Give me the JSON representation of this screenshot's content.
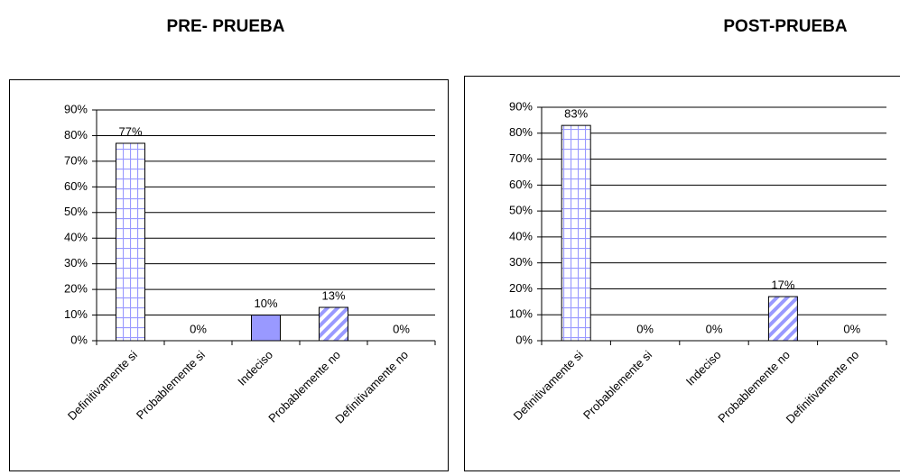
{
  "chart_data": [
    {
      "type": "bar",
      "title": "PRE- PRUEBA",
      "categories": [
        "Definitivamente si",
        "Probablemente si",
        "Indeciso",
        "Probablemente no",
        "Definitivamente no"
      ],
      "values": [
        77,
        0,
        10,
        13,
        0
      ],
      "value_labels": [
        "77%",
        "0%",
        "10%",
        "13%",
        "0%"
      ],
      "color": "#9999ff",
      "patterns": [
        "grid",
        "grid",
        "solid",
        "stripes",
        "stripes"
      ],
      "ylim": [
        0,
        90
      ],
      "yticks": [
        {
          "value": 0,
          "label": "0%"
        },
        {
          "value": 10,
          "label": "10%"
        },
        {
          "value": 20,
          "label": "20%"
        },
        {
          "value": 30,
          "label": "30%"
        },
        {
          "value": 40,
          "label": "40%"
        },
        {
          "value": 50,
          "label": "50%"
        },
        {
          "value": 60,
          "label": "60%"
        },
        {
          "value": 70,
          "label": "70%"
        },
        {
          "value": 80,
          "label": "80%"
        },
        {
          "value": 90,
          "label": "90%"
        }
      ],
      "grid": true
    },
    {
      "type": "bar",
      "title": "POST-PRUEBA",
      "categories": [
        "Definitivamente si",
        "Probablemente si",
        "Indeciso",
        "Probablemente no",
        "Definitivamente no"
      ],
      "values": [
        83,
        0,
        0,
        17,
        0
      ],
      "value_labels": [
        "83%",
        "0%",
        "0%",
        "17%",
        "0%"
      ],
      "color": "#9999ff",
      "patterns": [
        "grid",
        "grid",
        "solid",
        "stripes",
        "stripes"
      ],
      "ylim": [
        0,
        90
      ],
      "yticks": [
        {
          "value": 0,
          "label": "0%"
        },
        {
          "value": 10,
          "label": "10%"
        },
        {
          "value": 20,
          "label": "20%"
        },
        {
          "value": 30,
          "label": "30%"
        },
        {
          "value": 40,
          "label": "40%"
        },
        {
          "value": 50,
          "label": "50%"
        },
        {
          "value": 60,
          "label": "60%"
        },
        {
          "value": 70,
          "label": "70%"
        },
        {
          "value": 80,
          "label": "80%"
        },
        {
          "value": 90,
          "label": "90%"
        }
      ],
      "grid": true
    }
  ]
}
